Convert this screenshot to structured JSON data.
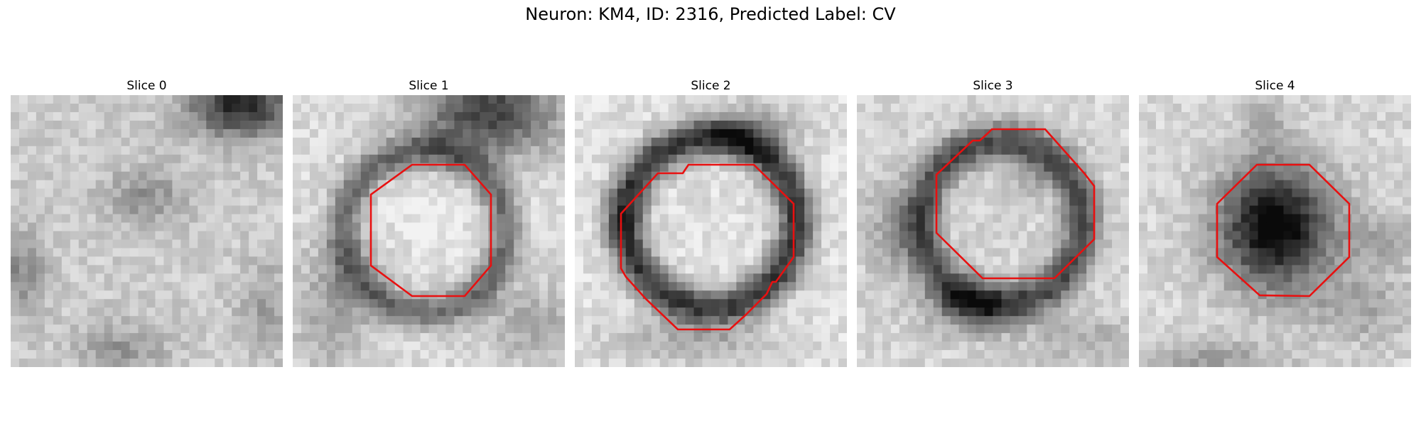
{
  "figure": {
    "title": "Neuron: KM4, ID: 2316, Predicted Label: CV"
  },
  "panels": [
    {
      "title": "Slice 0",
      "contour": false
    },
    {
      "title": "Slice 1",
      "contour": true
    },
    {
      "title": "Slice 2",
      "contour": true
    },
    {
      "title": "Slice 3",
      "contour": true
    },
    {
      "title": "Slice 4",
      "contour": true
    }
  ],
  "colors": {
    "contour": "#e81010",
    "background": "#ffffff"
  }
}
